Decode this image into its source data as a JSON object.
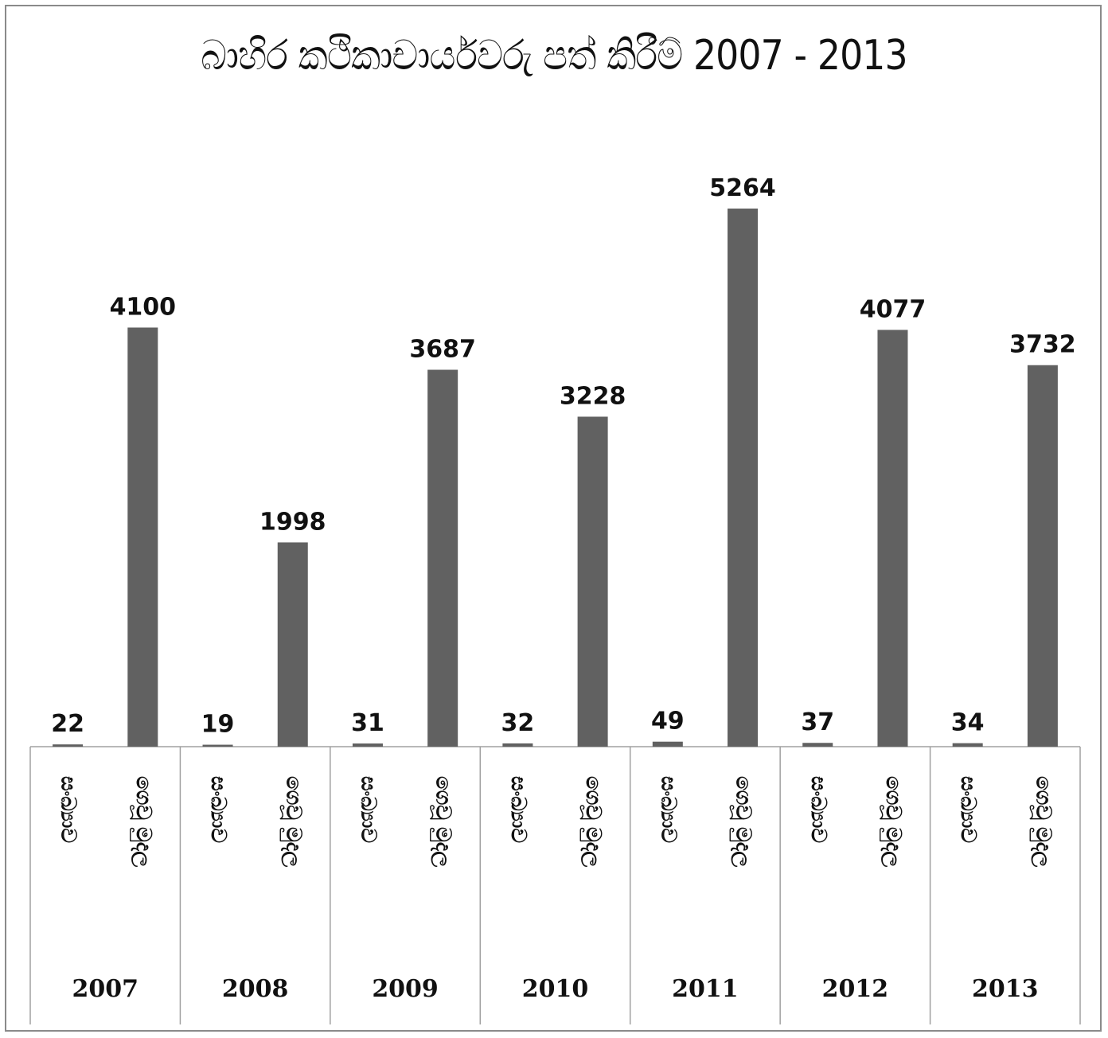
{
  "chart_data": {
    "type": "bar",
    "title": "බාහිර කථිකාචාර්යවරු පත් කිරීම් 2007 - 2013",
    "groups": [
      "2007",
      "2008",
      "2009",
      "2010",
      "2011",
      "2012",
      "2013"
    ],
    "subcategories": [
      "සංඛ්‍යාව",
      "ගෙවූ මුදල"
    ],
    "values": [
      [
        22,
        4100
      ],
      [
        19,
        1998
      ],
      [
        31,
        3687
      ],
      [
        32,
        3228
      ],
      [
        49,
        5264
      ],
      [
        37,
        4077
      ],
      [
        34,
        3732
      ]
    ],
    "ylim": [
      0,
      5264
    ],
    "bar_color": "#616161",
    "grid": false,
    "legend": "none"
  }
}
